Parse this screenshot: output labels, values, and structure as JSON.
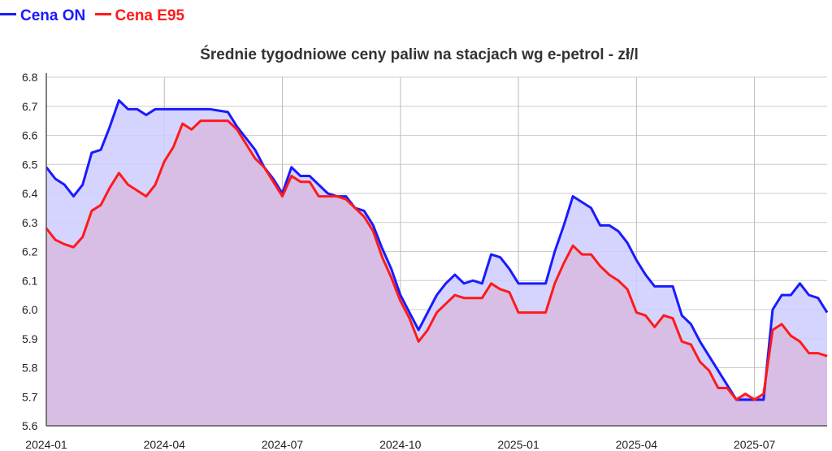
{
  "chart_data": {
    "type": "area",
    "title": "Średnie tygodniowe ceny paliw na stacjach wg e-petrol - zł/l",
    "xlabel": "",
    "ylabel": "",
    "ylim": [
      5.6,
      6.8
    ],
    "yticks": [
      "6.8",
      "6.7",
      "6.6",
      "6.5",
      "6.4",
      "6.3",
      "6.2",
      "6.1",
      "6.0",
      "5.9",
      "5.8",
      "5.7",
      "5.6"
    ],
    "xticks": [
      "2024-01",
      "2024-04",
      "2024-07",
      "2024-10",
      "2025-01",
      "2025-04",
      "2025-07"
    ],
    "grid": true,
    "legend_position": "top-left",
    "series": [
      {
        "name": "Cena ON",
        "color": "#1a1aff",
        "fill": "#ccccff",
        "values": [
          6.49,
          6.45,
          6.43,
          6.39,
          6.43,
          6.54,
          6.55,
          6.63,
          6.72,
          6.69,
          6.69,
          6.67,
          6.69,
          6.69,
          6.69,
          6.69,
          6.69,
          6.69,
          6.69,
          6.685,
          6.68,
          6.63,
          6.59,
          6.55,
          6.49,
          6.45,
          6.4,
          6.49,
          6.46,
          6.46,
          6.43,
          6.4,
          6.39,
          6.39,
          6.35,
          6.34,
          6.29,
          6.21,
          6.14,
          6.05,
          5.99,
          5.93,
          5.99,
          6.05,
          6.09,
          6.12,
          6.09,
          6.1,
          6.09,
          6.19,
          6.18,
          6.14,
          6.09,
          6.09,
          6.09,
          6.09,
          6.2,
          6.29,
          6.39,
          6.37,
          6.35,
          6.29,
          6.29,
          6.27,
          6.23,
          6.17,
          6.12,
          6.08,
          6.08,
          6.08,
          5.98,
          5.95,
          5.89,
          5.84,
          5.79,
          5.74,
          5.69,
          5.69,
          5.69,
          5.69,
          6.0,
          6.05,
          6.05,
          6.09,
          6.05,
          6.04,
          5.99
        ]
      },
      {
        "name": "Cena E95",
        "color": "#ff1a1a",
        "fill": "#d8b8dd",
        "values": [
          6.28,
          6.24,
          6.225,
          6.215,
          6.25,
          6.34,
          6.36,
          6.42,
          6.47,
          6.43,
          6.41,
          6.39,
          6.43,
          6.51,
          6.56,
          6.64,
          6.62,
          6.65,
          6.65,
          6.65,
          6.65,
          6.62,
          6.57,
          6.52,
          6.49,
          6.44,
          6.39,
          6.46,
          6.44,
          6.44,
          6.39,
          6.39,
          6.39,
          6.38,
          6.35,
          6.32,
          6.27,
          6.18,
          6.11,
          6.03,
          5.97,
          5.89,
          5.93,
          5.99,
          6.02,
          6.05,
          6.04,
          6.04,
          6.04,
          6.09,
          6.07,
          6.06,
          5.99,
          5.99,
          5.99,
          5.99,
          6.09,
          6.16,
          6.22,
          6.19,
          6.19,
          6.15,
          6.12,
          6.1,
          6.07,
          5.99,
          5.98,
          5.94,
          5.98,
          5.97,
          5.89,
          5.88,
          5.82,
          5.79,
          5.73,
          5.73,
          5.69,
          5.71,
          5.69,
          5.71,
          5.93,
          5.95,
          5.91,
          5.89,
          5.85,
          5.85,
          5.84
        ]
      }
    ]
  }
}
